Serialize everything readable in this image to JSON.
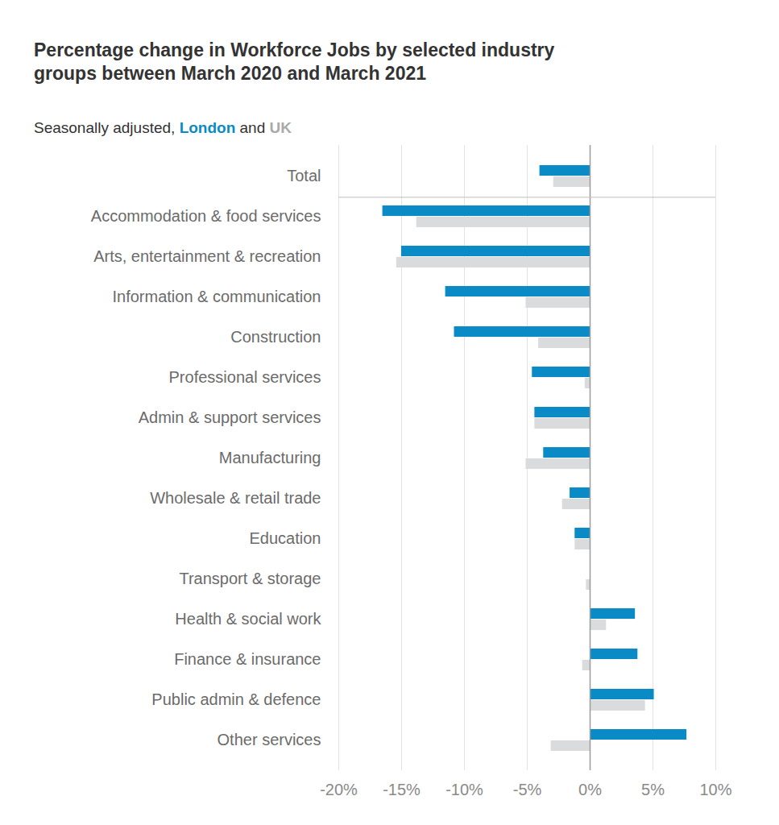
{
  "chart_data": {
    "type": "bar",
    "title": "Percentage change in Workforce Jobs by selected industry groups between March 2020 and March 2021",
    "subtitle": "Seasonally adjusted, London and UK",
    "orientation": "horizontal",
    "categories": [
      "Total",
      "Accommodation & food services",
      "Arts, entertainment & recreation",
      "Information & communication",
      "Construction",
      "Professional services",
      "Admin & support services",
      "Manufacturing",
      "Wholesale & retail trade",
      "Education",
      "Transport & storage",
      "Health & social work",
      "Finance & insurance",
      "Public admin & defence",
      "Other services"
    ],
    "series": [
      {
        "name": "London",
        "color": "#0a8bc6",
        "values": [
          -4.0,
          -16.5,
          -15.0,
          -11.5,
          -10.8,
          -4.6,
          -4.4,
          -3.7,
          -1.6,
          -1.2,
          0,
          3.6,
          3.8,
          5.1,
          7.7
        ]
      },
      {
        "name": "UK",
        "color": "#d9dbdd",
        "values": [
          -2.9,
          -13.8,
          -15.4,
          -5.1,
          -4.1,
          -0.4,
          -4.4,
          -5.1,
          -2.2,
          -1.2,
          -0.3,
          1.3,
          -0.6,
          4.4,
          -3.1
        ]
      }
    ],
    "xlim": [
      -20,
      10
    ],
    "xticks": [
      {
        "value": -20,
        "label": "-20%"
      },
      {
        "value": -15,
        "label": "-15%"
      },
      {
        "value": -10,
        "label": "-10%"
      },
      {
        "value": -5,
        "label": "-5%"
      },
      {
        "value": 0,
        "label": "0%"
      },
      {
        "value": 5,
        "label": "5%"
      },
      {
        "value": 10,
        "label": "10%"
      }
    ],
    "grid": true
  }
}
